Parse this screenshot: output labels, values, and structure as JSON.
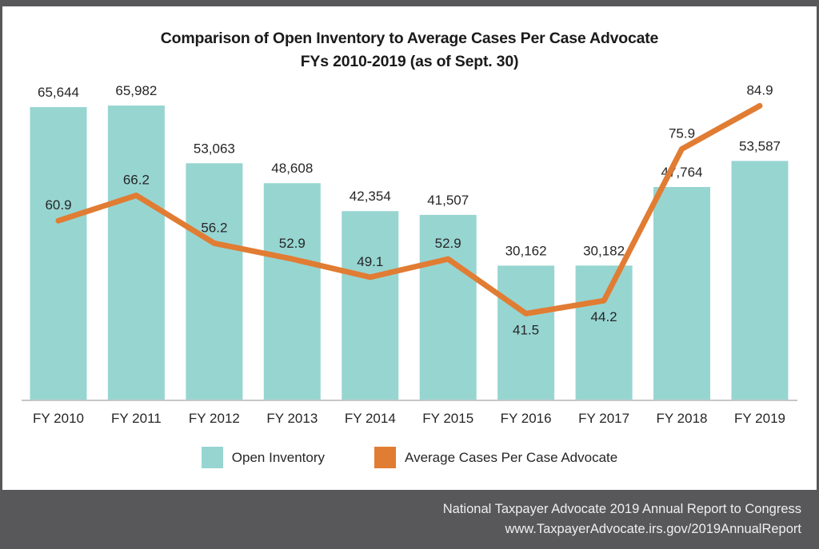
{
  "chart_data": {
    "type": "combo",
    "title_line1": "Comparison of Open Inventory to Average Cases Per Case Advocate",
    "title_line2": "FYs 2010-2019 (as of Sept. 30)",
    "categories": [
      "FY 2010",
      "FY 2011",
      "FY 2012",
      "FY 2013",
      "FY 2014",
      "FY 2015",
      "FY 2016",
      "FY 2017",
      "FY 2018",
      "FY 2019"
    ],
    "series": [
      {
        "name": "Open Inventory",
        "type": "bar",
        "color": "#97d5d1",
        "values": [
          65644,
          65982,
          53063,
          48608,
          42354,
          41507,
          30162,
          30182,
          47764,
          53587
        ],
        "value_labels": [
          "65,644",
          "65,982",
          "53,063",
          "48,608",
          "42,354",
          "41,507",
          "30,162",
          "30,182",
          "47,764",
          "53,587"
        ]
      },
      {
        "name": "Average Cases Per Case Advocate",
        "type": "line",
        "color": "#e17c33",
        "values": [
          60.9,
          66.2,
          56.2,
          52.9,
          49.1,
          52.9,
          41.5,
          44.2,
          75.9,
          84.9
        ],
        "value_labels": [
          "60.9",
          "66.2",
          "56.2",
          "52.9",
          "49.1",
          "52.9",
          "41.5",
          "44.2",
          "75.9",
          "84.9"
        ],
        "label_positions": [
          "above",
          "above",
          "above",
          "above",
          "above",
          "above",
          "below",
          "below",
          "above",
          "above"
        ]
      }
    ],
    "axis": {
      "baseline_color": "#c6c6c6",
      "bar_axis_min": 0,
      "bar_axis_implied_max": 71500,
      "grid": false
    },
    "legend_position": "bottom",
    "text_color": "#262626"
  },
  "footer": {
    "line1": "National Taxpayer Advocate 2019 Annual Report to Congress",
    "line2": "www.TaxpayerAdvocate.irs.gov/2019AnnualReport"
  }
}
